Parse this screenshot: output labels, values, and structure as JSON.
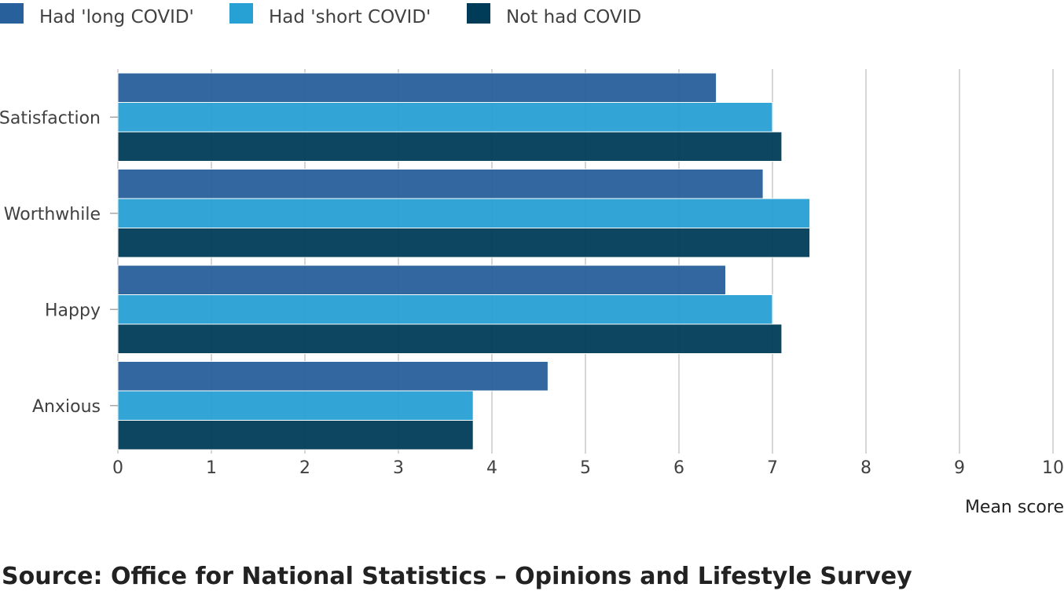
{
  "chart_data": {
    "type": "bar",
    "orientation": "horizontal",
    "categories": [
      "Satisfaction",
      "Worthwhile",
      "Happy",
      "Anxious"
    ],
    "series": [
      {
        "name": "Had 'long COVID'",
        "color": "#27609a",
        "values": [
          6.4,
          6.9,
          6.5,
          4.6
        ]
      },
      {
        "name": "Had 'short COVID'",
        "color": "#27a0d4",
        "values": [
          7.0,
          7.4,
          7.0,
          3.8
        ]
      },
      {
        "name": "Not had COVID",
        "color": "#003c57",
        "values": [
          7.1,
          7.4,
          7.1,
          3.8
        ]
      }
    ],
    "xlim": [
      0,
      10
    ],
    "xticks": [
      0,
      1,
      2,
      3,
      4,
      5,
      6,
      7,
      8,
      9,
      10
    ],
    "xlabel": "Mean score",
    "ylabel": "",
    "grid": true,
    "legend_position": "top-left"
  },
  "source": "Source: Office for National Statistics – Opinions and Lifestyle Survey"
}
